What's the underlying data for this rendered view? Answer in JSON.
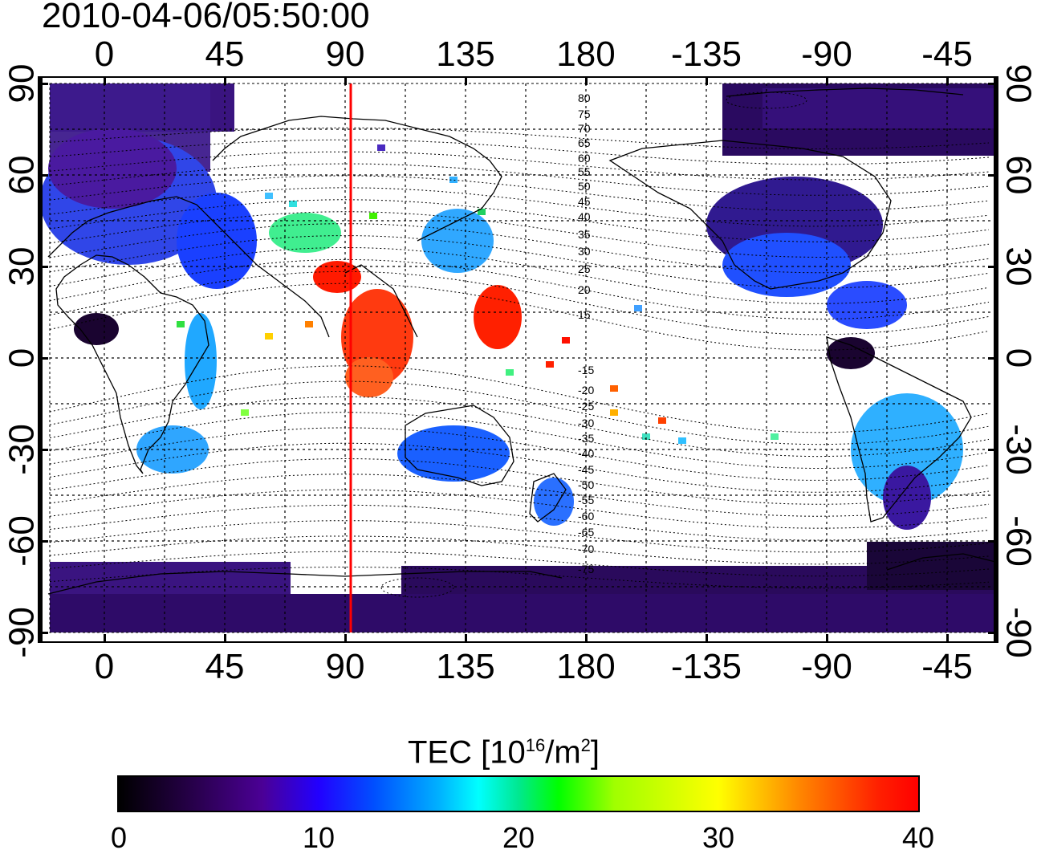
{
  "timestamp": "2010-04-06/05:50:00",
  "map": {
    "lon_ticks": [
      "0",
      "45",
      "90",
      "135",
      "180",
      "-135",
      "-90",
      "-45"
    ],
    "lat_ticks": [
      "90",
      "60",
      "30",
      "0",
      "-30",
      "-60",
      "-90"
    ],
    "magnetic_contour_labels_north": [
      "80",
      "75",
      "70",
      "65",
      "60",
      "55",
      "50",
      "45",
      "40",
      "35",
      "30",
      "25",
      "20",
      "15"
    ],
    "magnetic_contour_labels_south": [
      "-15",
      "-20",
      "-25",
      "-30",
      "-35",
      "-40",
      "-45",
      "-50",
      "-55",
      "-60",
      "-65",
      "-70",
      "-75"
    ],
    "marker_line_color": "#ff0000",
    "marker_line_longitude": 92
  },
  "colorbar": {
    "title_prefix": "TEC  [10",
    "title_sup1": "16",
    "title_mid": "/m",
    "title_sup2": "2",
    "title_suffix": "]",
    "tick_values": [
      "0",
      "10",
      "20",
      "30",
      "40"
    ],
    "range": [
      0,
      40
    ]
  }
}
